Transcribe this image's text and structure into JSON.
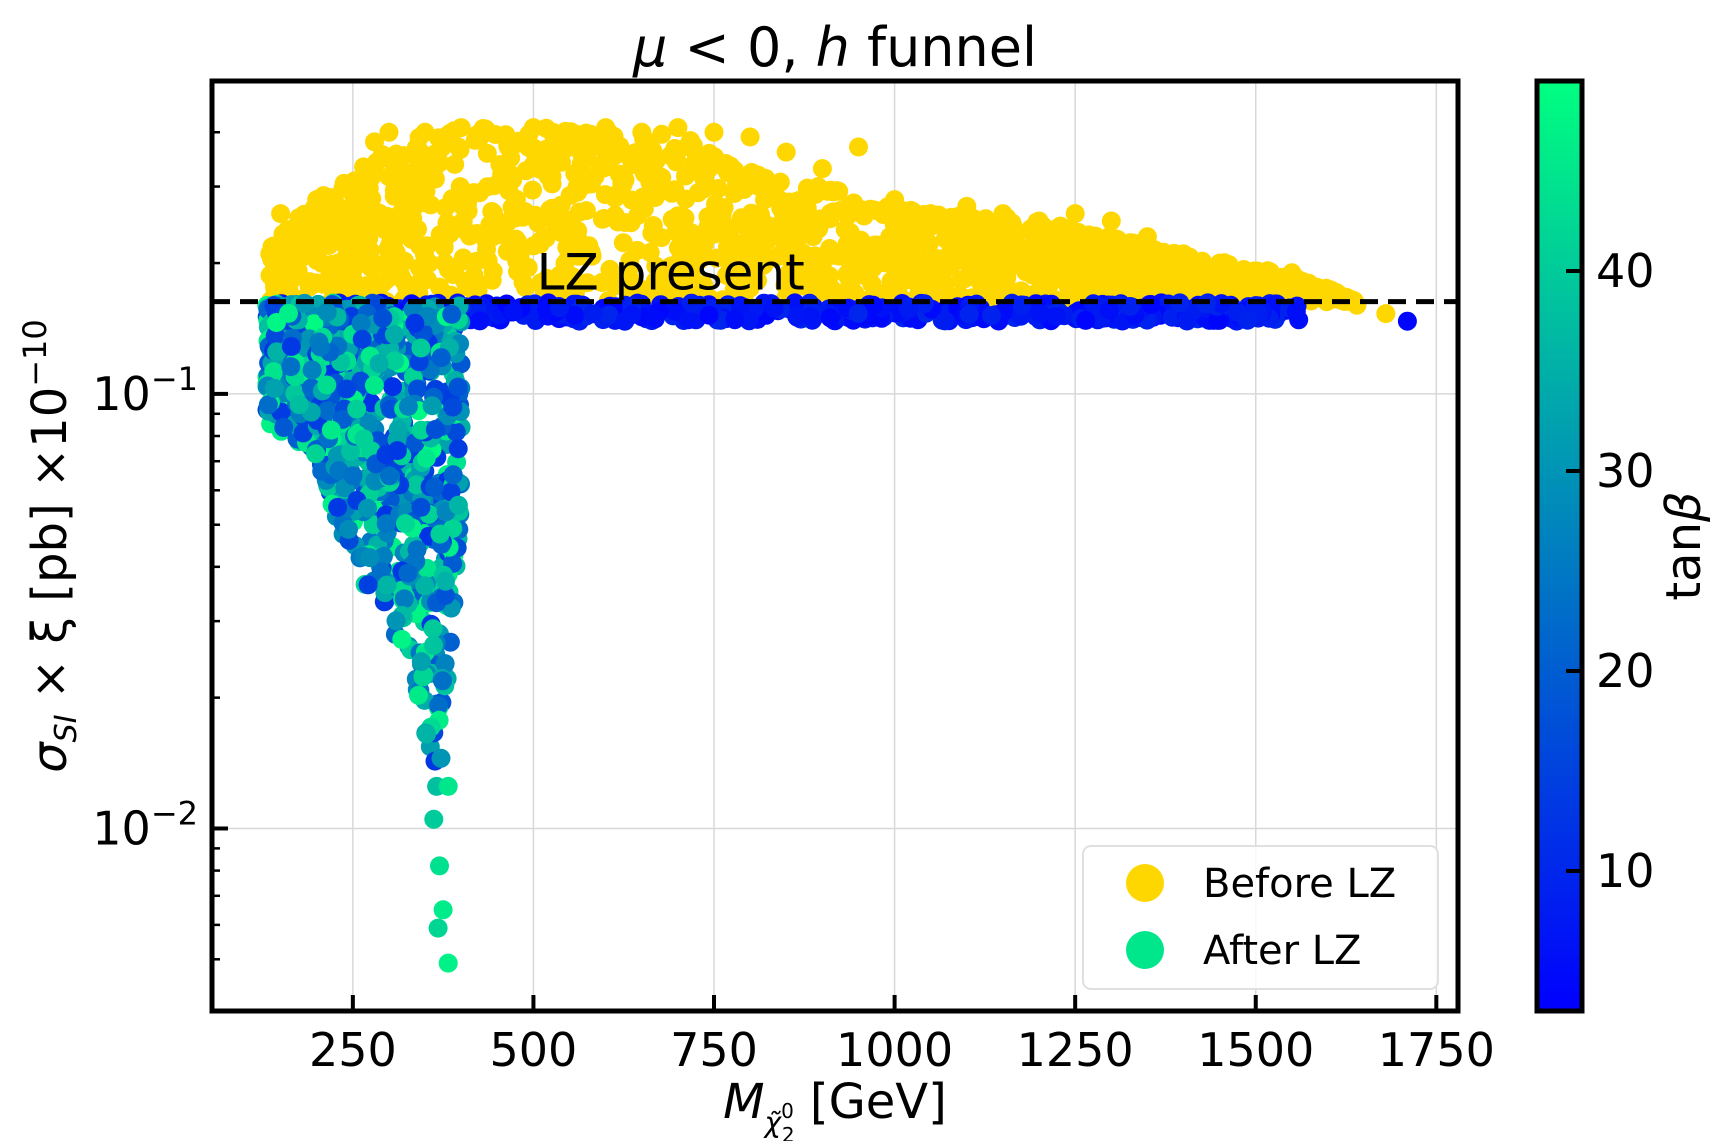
{
  "chart_data": {
    "type": "scatter",
    "title": "μ < 0, h funnel",
    "title_parts": {
      "mu": "μ",
      "lt": " < 0, ",
      "h": "h",
      "rest": " funnel"
    },
    "xlabel": "M",
    "xlabel_sub": "χ̃",
    "xlabel_sub_sup": "0",
    "xlabel_sub_sub": "2",
    "xlabel_unit": " [GeV]",
    "ylabel": "σ",
    "ylabel_sub": "SI",
    "ylabel_rest": " × ξ [pb] ×10",
    "ylabel_exp": "−10",
    "xlim": [
      55,
      1780
    ],
    "ylim_log10": [
      -2.42,
      -0.28
    ],
    "x_ticks": [
      250,
      500,
      750,
      1000,
      1250,
      1500,
      1750
    ],
    "x_tick_labels": [
      "250",
      "500",
      "750",
      "1000",
      "1250",
      "1500",
      "1750"
    ],
    "y_ticks": [
      {
        "base": "10",
        "exp": "−1",
        "value": 0.1
      },
      {
        "base": "10",
        "exp": "−2",
        "value": 0.01
      }
    ],
    "grid": true,
    "reference_line": {
      "label": "LZ present",
      "y": 0.163,
      "style": "dashed",
      "color": "#000000"
    },
    "colorbar": {
      "label": "tan",
      "label_symbol": "β",
      "range": [
        3,
        49.5
      ],
      "ticks": [
        10,
        20,
        30,
        40
      ],
      "tick_labels": [
        "10",
        "20",
        "30",
        "40"
      ],
      "colormap": "winter",
      "stops": [
        "#0000ff",
        "#00ff80"
      ]
    },
    "legend": {
      "position": "lower-right",
      "entries": [
        {
          "label": "Before LZ",
          "color": "#ffd700"
        },
        {
          "label": "After LZ",
          "color": "#00e68a"
        }
      ]
    },
    "series": [
      {
        "name": "Before LZ",
        "color": "#ffd700",
        "description_points": [
          [
            135,
            0.21
          ],
          [
            150,
            0.26
          ],
          [
            200,
            0.28
          ],
          [
            280,
            0.38
          ],
          [
            300,
            0.4
          ],
          [
            350,
            0.4
          ],
          [
            400,
            0.41
          ],
          [
            500,
            0.41
          ],
          [
            600,
            0.41
          ],
          [
            650,
            0.4
          ],
          [
            700,
            0.41
          ],
          [
            750,
            0.4
          ],
          [
            800,
            0.39
          ],
          [
            850,
            0.36
          ],
          [
            900,
            0.33
          ],
          [
            950,
            0.37
          ],
          [
            1000,
            0.28
          ],
          [
            1050,
            0.26
          ],
          [
            1100,
            0.27
          ],
          [
            1150,
            0.26
          ],
          [
            1200,
            0.25
          ],
          [
            1250,
            0.26
          ],
          [
            1300,
            0.25
          ],
          [
            1350,
            0.23
          ],
          [
            1400,
            0.21
          ],
          [
            1450,
            0.2
          ],
          [
            1500,
            0.19
          ],
          [
            1550,
            0.19
          ],
          [
            1600,
            0.17
          ],
          [
            1640,
            0.16
          ],
          [
            1680,
            0.153
          ]
        ],
        "envelope": {
          "x": [
            135,
            200,
            280,
            330,
            450,
            560,
            700,
            800,
            900,
            1000,
            1100,
            1200,
            1300,
            1400,
            1500,
            1560,
            1600,
            1650
          ],
          "y_top": [
            0.22,
            0.28,
            0.35,
            0.4,
            0.41,
            0.41,
            0.4,
            0.33,
            0.3,
            0.27,
            0.26,
            0.25,
            0.23,
            0.21,
            0.195,
            0.185,
            0.175,
            0.16
          ],
          "y_bottom": 0.163
        }
      },
      {
        "name": "After LZ",
        "color_by": "tanβ",
        "high_mass_band": {
          "x": [
            150,
            1560
          ],
          "y": [
            0.147,
            0.162
          ],
          "tan_beta": [
            4,
            10
          ]
        },
        "low_mass_cloud": {
          "x": [
            130,
            400
          ],
          "upper_y": 0.162,
          "boundary": [
            [
              135,
              0.085
            ],
            [
              170,
              0.078
            ],
            [
              200,
              0.07
            ],
            [
              220,
              0.055
            ],
            [
              250,
              0.04
            ],
            [
              275,
              0.034
            ],
            [
              300,
              0.03
            ],
            [
              320,
              0.024
            ],
            [
              335,
              0.02
            ],
            [
              350,
              0.015
            ],
            [
              360,
              0.012
            ],
            [
              375,
              0.016
            ],
            [
              385,
              0.025
            ],
            [
              395,
              0.035
            ],
            [
              400,
              0.06
            ],
            [
              405,
              0.09
            ]
          ]
        },
        "outliers": [
          [
            1710,
            0.147,
            4
          ],
          [
            370,
            0.0082,
            44
          ],
          [
            375,
            0.0065,
            46
          ],
          [
            368,
            0.0059,
            42
          ],
          [
            382,
            0.0049,
            47
          ],
          [
            362,
            0.0105,
            40
          ],
          [
            366,
            0.0125,
            38
          ],
          [
            372,
            0.0145,
            30
          ],
          [
            382,
            0.0125,
            45
          ],
          [
            352,
            0.0165,
            36
          ]
        ]
      }
    ]
  }
}
